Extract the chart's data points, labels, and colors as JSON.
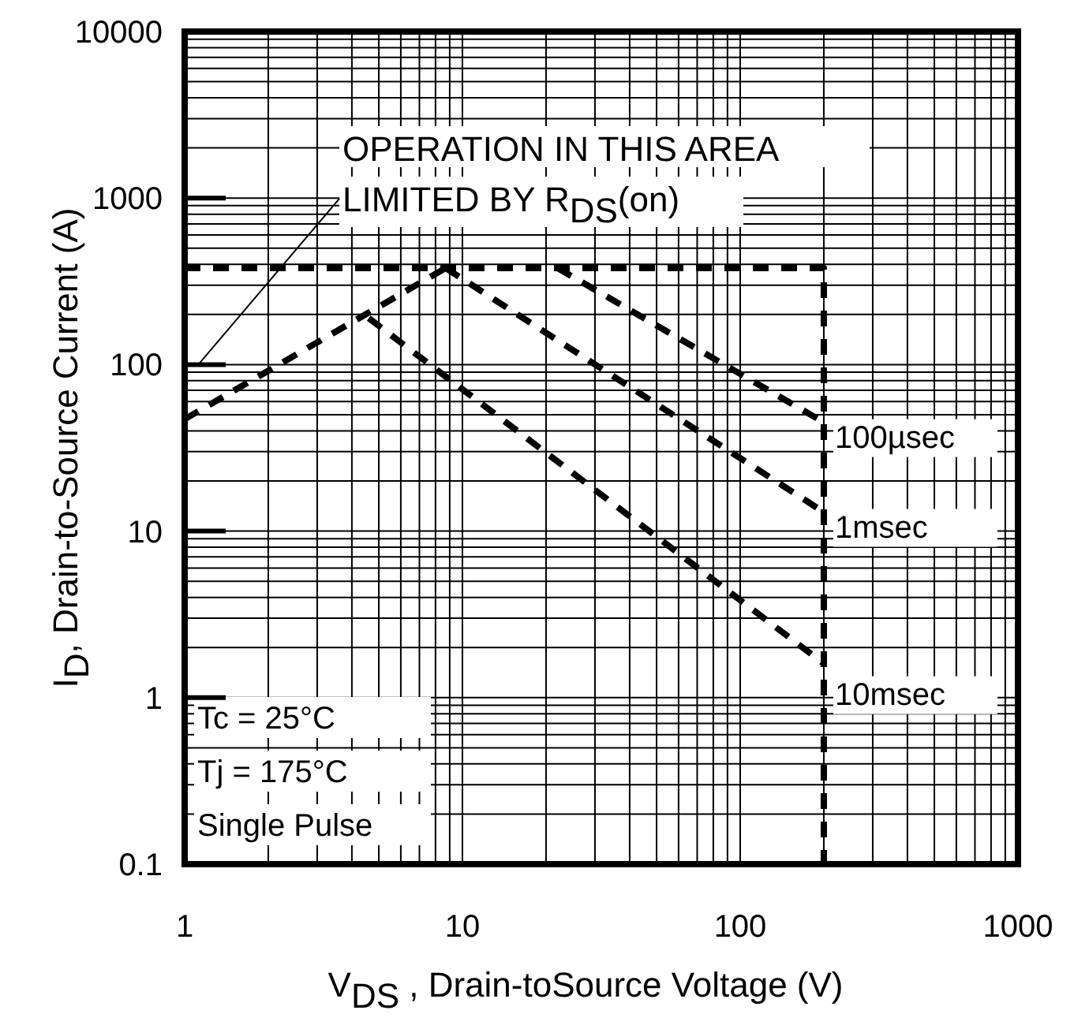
{
  "chart_data": {
    "type": "line",
    "xlabel": "V$_{DS}$  , Drain-toSource Voltage (V)",
    "ylabel": "I$_{D}$,  Drain-to-Source Current (A)",
    "log": "xy",
    "xlim": [
      1,
      1000
    ],
    "ylim": [
      0.1,
      10000
    ],
    "xticks": [
      1,
      10,
      100,
      1000
    ],
    "yticks": [
      0.1,
      1,
      10,
      100,
      1000,
      10000
    ],
    "grid": true,
    "line_style": "dashed",
    "series": [
      {
        "color": "#000000",
        "x": [
          1,
          200,
          200
        ],
        "values": [
          380,
          380,
          0.1
        ]
      },
      {
        "color": "#000000",
        "x": [
          1,
          8.7
        ],
        "values": [
          47,
          380
        ]
      },
      {
        "name": "100µsec",
        "color": "#000000",
        "x": [
          22,
          200
        ],
        "values": [
          380,
          45
        ]
      },
      {
        "name": "1msec",
        "color": "#000000",
        "x": [
          8.7,
          200
        ],
        "values": [
          380,
          13
        ]
      },
      {
        "name": "10msec",
        "color": "#000000",
        "x": [
          4.6,
          200
        ],
        "values": [
          190,
          1.6
        ]
      }
    ],
    "annotations": [
      "OPERATION IN THIS AREA",
      "LIMITED BY R$_{DS}$(on)",
      "Tc = 25°C",
      "Tj = 175°C",
      "Single Pulse"
    ]
  }
}
